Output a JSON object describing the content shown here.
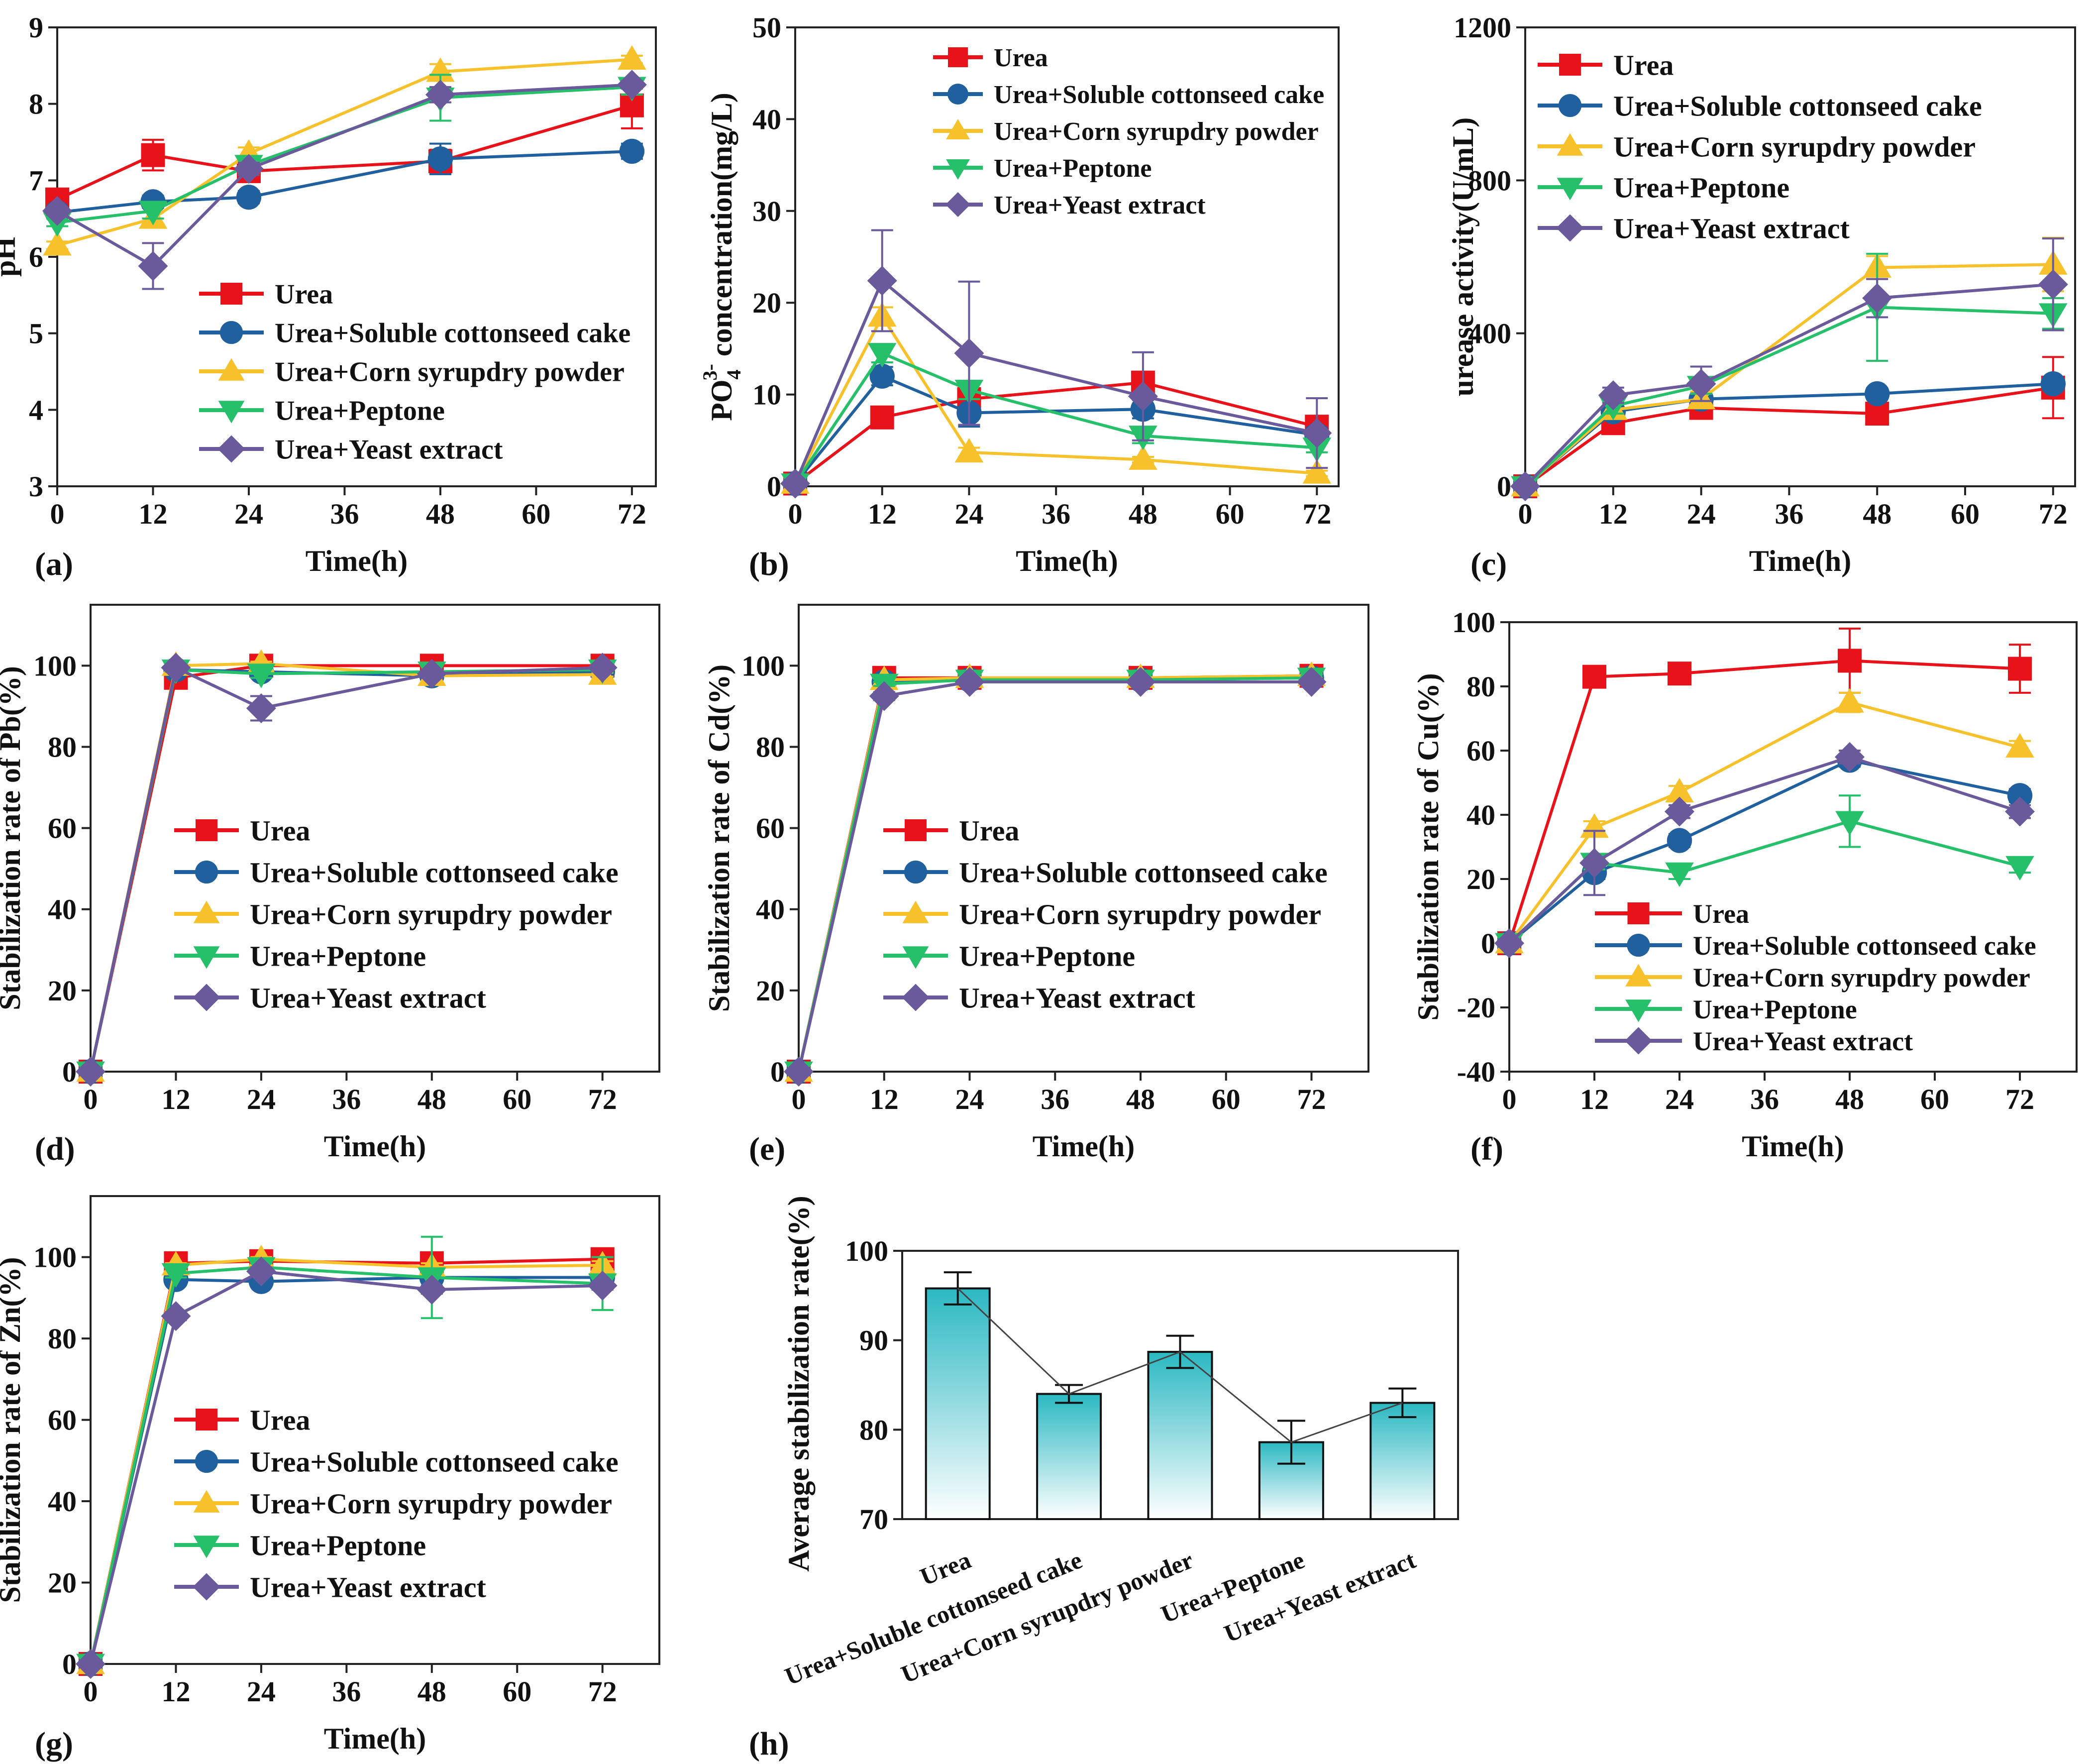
{
  "figure": {
    "legend_labels": [
      "Urea",
      "Urea+Soluble cottonseed cake",
      "Urea+Corn syrupdry powder",
      "Urea+Peptone",
      "Urea+Yeast extract"
    ],
    "series_colors": [
      "#e8121a",
      "#21609e",
      "#f7c12b",
      "#27c06a",
      "#6a5a9c"
    ],
    "bar_color_top": "#2bb8c2",
    "bar_color_bottom": "#ffffff"
  },
  "chart_data": [
    {
      "id": "a",
      "panel_label": "(a)",
      "type": "line",
      "xlabel": "Time(h)",
      "ylabel": "pH",
      "xlim": [
        0,
        75
      ],
      "ylim": [
        3,
        9
      ],
      "xticks": [
        "0",
        "12",
        "24",
        "36",
        "48",
        "60",
        "72"
      ],
      "yticks": [
        "3",
        "4",
        "5",
        "6",
        "7",
        "8",
        "9"
      ],
      "x": [
        0,
        12,
        24,
        48,
        72
      ],
      "series": [
        {
          "name": "Urea",
          "values": [
            6.75,
            7.33,
            7.12,
            7.25,
            7.98
          ],
          "err": [
            0.05,
            0.2,
            0.1,
            0.15,
            0.3
          ]
        },
        {
          "name": "Urea+Soluble cottonseed cake",
          "values": [
            6.58,
            6.72,
            6.78,
            7.28,
            7.38
          ],
          "err": [
            0.05,
            0.08,
            0.08,
            0.2,
            0.1
          ]
        },
        {
          "name": "Urea+Corn syrupdry powder",
          "values": [
            6.15,
            6.5,
            7.35,
            8.42,
            8.58
          ],
          "err": [
            0.05,
            0.08,
            0.08,
            0.1,
            0.05
          ]
        },
        {
          "name": "Urea+Peptone",
          "values": [
            6.45,
            6.6,
            7.2,
            8.08,
            8.22
          ],
          "err": [
            0.05,
            0.1,
            0.1,
            0.3,
            0.1
          ]
        },
        {
          "name": "Urea+Yeast extract",
          "values": [
            6.6,
            5.88,
            7.15,
            8.12,
            8.25
          ],
          "err": [
            0.05,
            0.3,
            0.08,
            0.1,
            0.05
          ]
        }
      ]
    },
    {
      "id": "b",
      "panel_label": "(b)",
      "type": "line",
      "xlabel": "Time(h)",
      "ylabel": "PO4 concentration(mg/L)",
      "ylabel_parts": {
        "main": "PO",
        "sub": "4",
        "sup": "3-",
        "rest": " concentration(mg/L)"
      },
      "xlim": [
        0,
        75
      ],
      "ylim": [
        0,
        50
      ],
      "xticks": [
        "0",
        "12",
        "24",
        "36",
        "48",
        "60",
        "72"
      ],
      "yticks": [
        "0",
        "10",
        "20",
        "30",
        "40",
        "50"
      ],
      "x": [
        0,
        12,
        24,
        48,
        72
      ],
      "series": [
        {
          "name": "Urea",
          "values": [
            0.3,
            7.5,
            9.5,
            11.3,
            6.5
          ],
          "err": [
            0,
            0.5,
            0.5,
            1,
            1
          ]
        },
        {
          "name": "Urea+Soluble cottonseed cake",
          "values": [
            0.3,
            12.0,
            8.0,
            8.4,
            5.6
          ],
          "err": [
            0,
            1,
            1.5,
            1,
            0.8
          ]
        },
        {
          "name": "Urea+Corn syrupdry powder",
          "values": [
            0.3,
            18.5,
            3.7,
            2.9,
            1.4
          ],
          "err": [
            0,
            1,
            0.5,
            0.3,
            0.3
          ]
        },
        {
          "name": "Urea+Peptone",
          "values": [
            0.3,
            14.5,
            10.5,
            5.5,
            4.2
          ],
          "err": [
            0,
            1,
            1,
            0.8,
            0.5
          ]
        },
        {
          "name": "Urea+Yeast extract",
          "values": [
            0.3,
            22.4,
            14.5,
            9.8,
            5.8
          ],
          "err": [
            0,
            5.5,
            7.8,
            4.8,
            3.8
          ]
        }
      ]
    },
    {
      "id": "c",
      "panel_label": "(c)",
      "type": "line",
      "xlabel": "Time(h)",
      "ylabel": "urease activity(U/mL)",
      "xlim": [
        0,
        75
      ],
      "ylim": [
        0,
        1200
      ],
      "xticks": [
        "0",
        "12",
        "24",
        "36",
        "48",
        "60",
        "72"
      ],
      "yticks": [
        "0",
        "400",
        "800",
        "1200"
      ],
      "x": [
        0,
        12,
        24,
        48,
        72
      ],
      "series": [
        {
          "name": "Urea",
          "values": [
            0,
            165,
            205,
            190,
            258
          ],
          "err": [
            0,
            15,
            15,
            15,
            80
          ]
        },
        {
          "name": "Urea+Soluble cottonseed cake",
          "values": [
            0,
            195,
            228,
            242,
            268
          ],
          "err": [
            0,
            15,
            15,
            15,
            15
          ]
        },
        {
          "name": "Urea+Corn syrupdry powder",
          "values": [
            0,
            200,
            228,
            572,
            580
          ],
          "err": [
            0,
            20,
            20,
            30,
            70
          ]
        },
        {
          "name": "Urea+Peptone",
          "values": [
            0,
            210,
            262,
            468,
            452
          ],
          "err": [
            0,
            20,
            20,
            140,
            40
          ]
        },
        {
          "name": "Urea+Yeast extract",
          "values": [
            0,
            238,
            268,
            492,
            528
          ],
          "err": [
            0,
            20,
            45,
            50,
            120
          ]
        }
      ]
    },
    {
      "id": "d",
      "panel_label": "(d)",
      "type": "line",
      "xlabel": "Time(h)",
      "ylabel": "Stabilization rate of Pb(%)",
      "xlim": [
        0,
        80
      ],
      "ylim": [
        0,
        115
      ],
      "xticks": [
        "0",
        "12",
        "24",
        "36",
        "48",
        "60",
        "72"
      ],
      "yticks": [
        "0",
        "20",
        "40",
        "60",
        "80",
        "100"
      ],
      "x": [
        0,
        12,
        24,
        48,
        72
      ],
      "series": [
        {
          "name": "Urea",
          "values": [
            0,
            97,
            100,
            100,
            100
          ],
          "err": [
            0,
            2,
            0.5,
            0.5,
            0.5
          ]
        },
        {
          "name": "Urea+Soluble cottonseed cake",
          "values": [
            0,
            99,
            98.5,
            97.5,
            98.5
          ],
          "err": [
            0,
            1,
            1,
            1,
            1
          ]
        },
        {
          "name": "Urea+Corn syrupdry powder",
          "values": [
            0,
            100,
            100.5,
            97.5,
            97.8
          ],
          "err": [
            0,
            0.5,
            0.5,
            0.5,
            0.5
          ]
        },
        {
          "name": "Urea+Peptone",
          "values": [
            0,
            99,
            98,
            98.5,
            99
          ],
          "err": [
            0,
            0.5,
            1,
            0.5,
            0.5
          ]
        },
        {
          "name": "Urea+Yeast extract",
          "values": [
            0,
            99.5,
            89.5,
            98,
            99.5
          ],
          "err": [
            0,
            0.5,
            3,
            1,
            0.5
          ]
        }
      ]
    },
    {
      "id": "e",
      "panel_label": "(e)",
      "type": "line",
      "xlabel": "Time(h)",
      "ylabel": "Stabilization rate of Cd(%)",
      "xlim": [
        0,
        80
      ],
      "ylim": [
        0,
        115
      ],
      "xticks": [
        "0",
        "12",
        "24",
        "36",
        "48",
        "60",
        "72"
      ],
      "yticks": [
        "0",
        "20",
        "40",
        "60",
        "80",
        "100"
      ],
      "x": [
        0,
        12,
        24,
        48,
        72
      ],
      "series": [
        {
          "name": "Urea",
          "values": [
            0,
            97,
            97,
            97,
            97.5
          ],
          "err": [
            0,
            0.5,
            0.5,
            0.5,
            0.5
          ]
        },
        {
          "name": "Urea+Soluble cottonseed cake",
          "values": [
            0,
            96,
            96.5,
            96.5,
            97
          ],
          "err": [
            0,
            0.5,
            0.5,
            0.5,
            0.5
          ]
        },
        {
          "name": "Urea+Corn syrupdry powder",
          "values": [
            0,
            96.5,
            97,
            97,
            97.5
          ],
          "err": [
            0,
            0.5,
            0.5,
            0.5,
            0.5
          ]
        },
        {
          "name": "Urea+Peptone",
          "values": [
            0,
            95.5,
            96.5,
            96.5,
            97
          ],
          "err": [
            0,
            0.5,
            0.5,
            0.5,
            0.5
          ]
        },
        {
          "name": "Urea+Yeast extract",
          "values": [
            0,
            92.5,
            96,
            96,
            96
          ],
          "err": [
            0,
            1,
            0.5,
            0.5,
            0.5
          ]
        }
      ]
    },
    {
      "id": "f",
      "panel_label": "(f)",
      "type": "line",
      "xlabel": "Time(h)",
      "ylabel": "Stabilization rate of Cu(%)",
      "xlim": [
        0,
        80
      ],
      "ylim": [
        -40,
        100
      ],
      "xticks": [
        "0",
        "12",
        "24",
        "36",
        "48",
        "60",
        "72"
      ],
      "yticks": [
        "-40",
        "-20",
        "0",
        "20",
        "40",
        "60",
        "80",
        "100"
      ],
      "x": [
        0,
        12,
        24,
        48,
        72
      ],
      "series": [
        {
          "name": "Urea",
          "values": [
            0,
            83,
            84,
            88,
            85.5
          ],
          "err": [
            0,
            1,
            1,
            10,
            7.5
          ]
        },
        {
          "name": "Urea+Soluble cottonseed cake",
          "values": [
            0,
            22,
            32,
            57,
            46
          ],
          "err": [
            0,
            2,
            2,
            2,
            2
          ]
        },
        {
          "name": "Urea+Corn syrupdry powder",
          "values": [
            0,
            36,
            47,
            75,
            61
          ],
          "err": [
            0,
            2,
            2,
            3,
            2
          ]
        },
        {
          "name": "Urea+Peptone",
          "values": [
            0,
            25,
            22,
            38,
            24
          ],
          "err": [
            0,
            2,
            2,
            8,
            2
          ]
        },
        {
          "name": "Urea+Yeast extract",
          "values": [
            0,
            25,
            41,
            58,
            41
          ],
          "err": [
            0,
            10,
            2,
            2,
            2
          ]
        }
      ]
    },
    {
      "id": "g",
      "panel_label": "(g)",
      "type": "line",
      "xlabel": "Time(h)",
      "ylabel": "Stabilization rate of Zn(%)",
      "xlim": [
        0,
        80
      ],
      "ylim": [
        0,
        115
      ],
      "xticks": [
        "0",
        "12",
        "24",
        "36",
        "48",
        "60",
        "72"
      ],
      "yticks": [
        "0",
        "20",
        "40",
        "60",
        "80",
        "100"
      ],
      "x": [
        0,
        12,
        24,
        48,
        72
      ],
      "series": [
        {
          "name": "Urea",
          "values": [
            0,
            98.5,
            99,
            98.5,
            99.5
          ],
          "err": [
            0,
            0.5,
            0.5,
            0.5,
            0.5
          ]
        },
        {
          "name": "Urea+Soluble cottonseed cake",
          "values": [
            0,
            94.5,
            94,
            95,
            95
          ],
          "err": [
            0,
            0.5,
            0.5,
            1,
            1
          ]
        },
        {
          "name": "Urea+Corn syrupdry powder",
          "values": [
            0,
            98,
            99.5,
            97.5,
            98
          ],
          "err": [
            0,
            0.5,
            0.5,
            1,
            1
          ]
        },
        {
          "name": "Urea+Peptone",
          "values": [
            0,
            96,
            97.5,
            95,
            93.5
          ],
          "err": [
            0,
            1,
            1,
            10,
            6.5
          ]
        },
        {
          "name": "Urea+Yeast extract",
          "values": [
            0,
            85.5,
            96.5,
            92,
            93
          ],
          "err": [
            0,
            1,
            1,
            1,
            1
          ]
        }
      ]
    },
    {
      "id": "h",
      "panel_label": "(h)",
      "type": "bar",
      "ylabel": "Average stabilization rate(%)",
      "ylim": [
        70,
        100
      ],
      "yticks": [
        "70",
        "80",
        "90",
        "100"
      ],
      "categories": [
        "Urea",
        "Urea+Soluble cottonseed cake",
        "Urea+Corn syrupdry powder",
        "Urea+Peptone",
        "Urea+Yeast extract"
      ],
      "values": [
        95.8,
        84.0,
        88.7,
        78.6,
        83.0
      ],
      "err": [
        1.8,
        1.0,
        1.8,
        2.4,
        1.6
      ]
    }
  ]
}
